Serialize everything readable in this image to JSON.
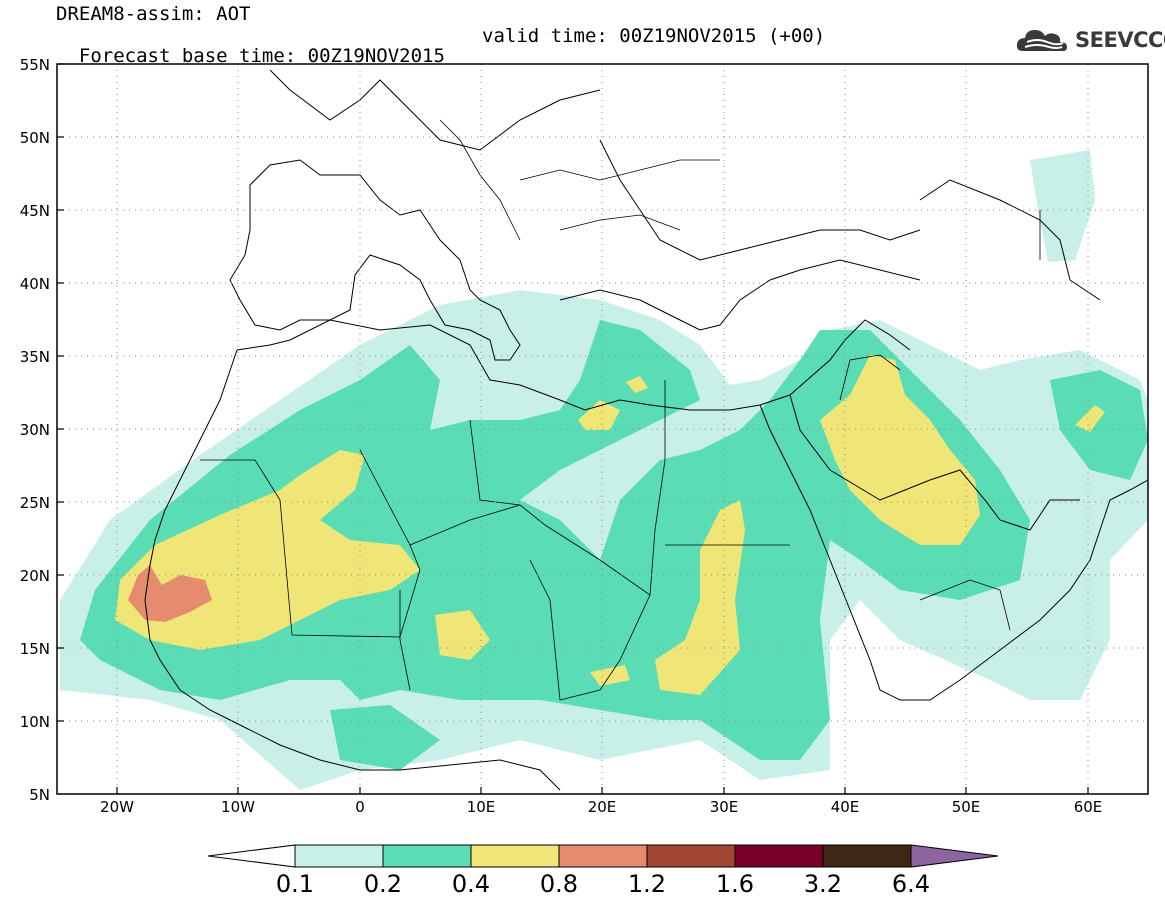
{
  "header": {
    "title": "DREAM8-assim: AOT",
    "base_time": "Forecast base time: 00Z19NOV2015",
    "valid_time": "valid time: 00Z19NOV2015 (+00)"
  },
  "logo": {
    "text": "SEEVCCC",
    "icon": "cloud-logo-icon"
  },
  "map": {
    "lat_labels": [
      "55N",
      "50N",
      "45N",
      "40N",
      "35N",
      "30N",
      "25N",
      "20N",
      "15N",
      "10N",
      "5N"
    ],
    "lon_labels": [
      "20W",
      "10W",
      "0",
      "10E",
      "20E",
      "30E",
      "40E",
      "50E",
      "60E"
    ],
    "lat_range": [
      5,
      55
    ],
    "lon_range": [
      -25,
      65
    ],
    "grid": "dotted"
  },
  "colorbar": {
    "labels": [
      "0.1",
      "0.2",
      "0.4",
      "0.8",
      "1.2",
      "1.6",
      "3.2",
      "6.4"
    ],
    "colors": [
      "#c8f0e8",
      "#5adcb4",
      "#f0e678",
      "#e68c6e",
      "#a04632",
      "#780028",
      "#3c2814",
      "#8c64a0"
    ]
  }
}
